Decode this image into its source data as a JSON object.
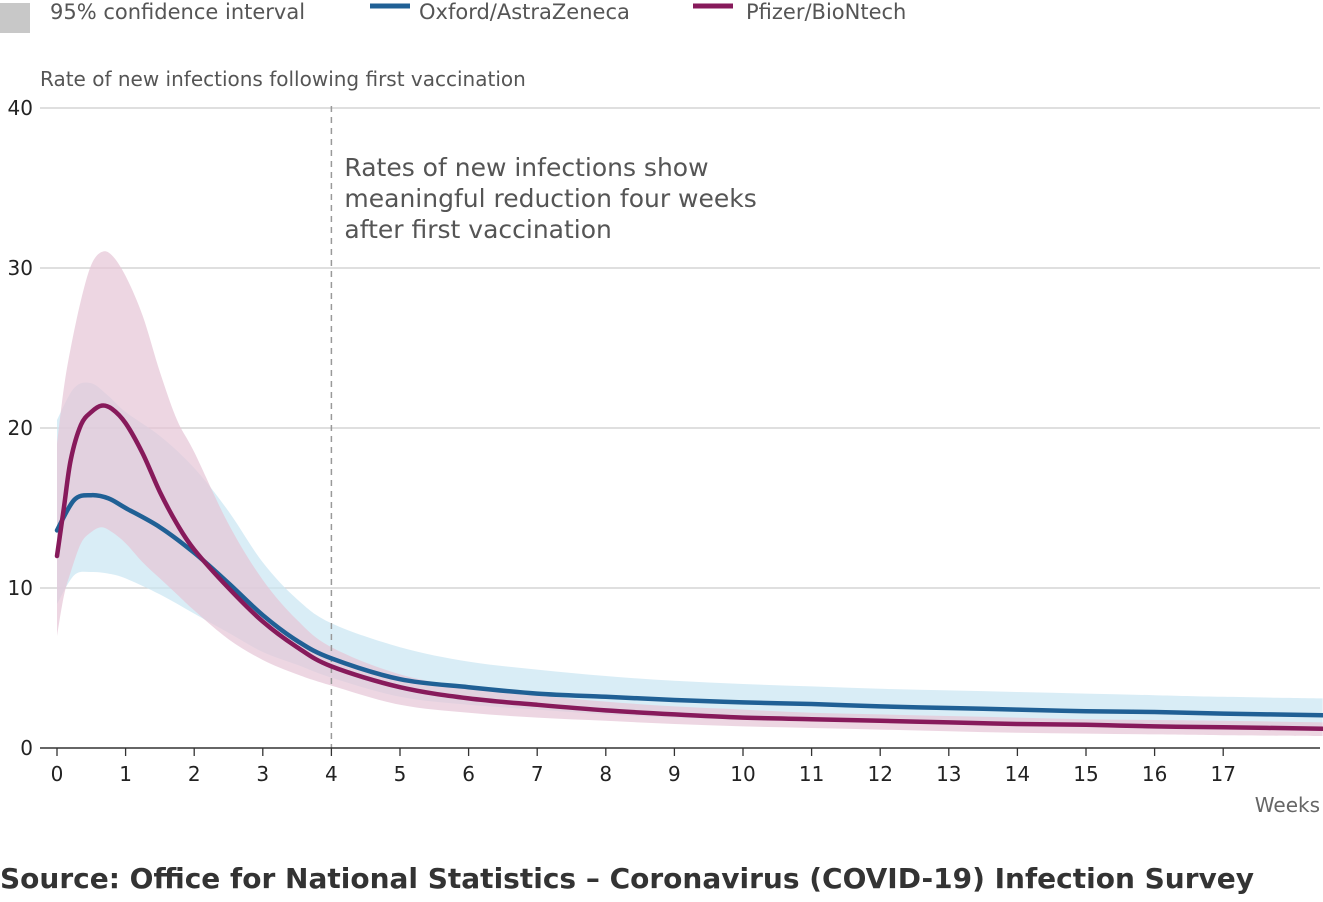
{
  "chart_data": {
    "type": "line",
    "ylabel": "Rate of new infections following first vaccination",
    "xlabel": "Weeks",
    "xlim": [
      0,
      18.45
    ],
    "ylim": [
      0,
      40
    ],
    "x_ticks": [
      0,
      1,
      2,
      3,
      4,
      5,
      6,
      7,
      8,
      9,
      10,
      11,
      12,
      13,
      14,
      15,
      16,
      17
    ],
    "y_ticks": [
      0,
      10,
      20,
      30,
      40
    ],
    "grid": "horizontal",
    "legend": {
      "position": "top",
      "entries": [
        {
          "label": "95% confidence interval",
          "color": "#c8c8c8",
          "kind": "swatch"
        },
        {
          "label": "Oxford/AstraZeneca",
          "color": "#206095",
          "kind": "line"
        },
        {
          "label": "Pfizer/BioNtech",
          "color": "#871a5b",
          "kind": "line"
        }
      ]
    },
    "annotation": {
      "x": 4,
      "lines": [
        "Rates of new infections show",
        "meaningful reduction four weeks",
        "after first vaccination"
      ]
    },
    "series": [
      {
        "name": "Oxford/AstraZeneca",
        "color": "#206095",
        "band_color": "#c9e6f2",
        "x": [
          0,
          0.25,
          0.5,
          0.75,
          1,
          1.5,
          2,
          2.5,
          3,
          3.5,
          4,
          5,
          6,
          7,
          8,
          9,
          10,
          11,
          12,
          13,
          14,
          15,
          16,
          17,
          18.45
        ],
        "y": [
          13.6,
          15.5,
          15.8,
          15.6,
          15.0,
          13.8,
          12.2,
          10.3,
          8.3,
          6.7,
          5.6,
          4.3,
          3.8,
          3.4,
          3.2,
          3.0,
          2.85,
          2.75,
          2.6,
          2.5,
          2.4,
          2.3,
          2.25,
          2.15,
          2.05
        ],
        "lower": [
          9.0,
          10.8,
          11.0,
          10.9,
          10.6,
          9.6,
          8.4,
          7.2,
          6.0,
          5.2,
          4.4,
          3.2,
          2.7,
          2.4,
          2.1,
          1.9,
          1.8,
          1.7,
          1.6,
          1.5,
          1.4,
          1.35,
          1.3,
          1.2,
          1.1
        ],
        "upper": [
          20.5,
          22.5,
          22.8,
          22.0,
          21.0,
          19.5,
          17.5,
          14.8,
          11.6,
          9.3,
          7.8,
          6.3,
          5.4,
          4.9,
          4.5,
          4.2,
          4.0,
          3.85,
          3.7,
          3.6,
          3.5,
          3.4,
          3.3,
          3.2,
          3.1
        ]
      },
      {
        "name": "Pfizer/BioNtech",
        "color": "#871a5b",
        "band_color": "#e6c4d6",
        "x": [
          0,
          0.1,
          0.2,
          0.35,
          0.5,
          0.65,
          0.8,
          1,
          1.25,
          1.5,
          1.75,
          2,
          2.5,
          3,
          3.5,
          4,
          5,
          6,
          7,
          8,
          9,
          10,
          11,
          12,
          13,
          14,
          15,
          16,
          17,
          18.45
        ],
        "y": [
          12.0,
          15.0,
          18.0,
          20.2,
          21.0,
          21.4,
          21.2,
          20.3,
          18.4,
          16.0,
          14.0,
          12.4,
          10.0,
          7.9,
          6.3,
          5.1,
          3.8,
          3.1,
          2.7,
          2.35,
          2.1,
          1.9,
          1.8,
          1.7,
          1.6,
          1.5,
          1.45,
          1.35,
          1.3,
          1.2
        ],
        "lower": [
          7.0,
          9.5,
          11.0,
          12.8,
          13.5,
          13.8,
          13.5,
          12.8,
          11.6,
          10.6,
          9.6,
          8.6,
          6.8,
          5.5,
          4.6,
          3.9,
          2.7,
          2.2,
          1.9,
          1.7,
          1.5,
          1.35,
          1.25,
          1.15,
          1.05,
          0.95,
          0.9,
          0.85,
          0.8,
          0.75
        ],
        "upper": [
          19.0,
          22.5,
          25.0,
          28.0,
          30.2,
          31.0,
          30.8,
          29.5,
          27.0,
          23.5,
          20.5,
          18.5,
          14.0,
          10.5,
          8.0,
          6.3,
          4.6,
          3.8,
          3.3,
          2.9,
          2.6,
          2.4,
          2.2,
          2.1,
          2.0,
          1.9,
          1.8,
          1.75,
          1.7,
          1.6
        ]
      }
    ]
  },
  "source": "Source: Office for National Statistics – Coronavirus (COVID-19) Infection Survey"
}
